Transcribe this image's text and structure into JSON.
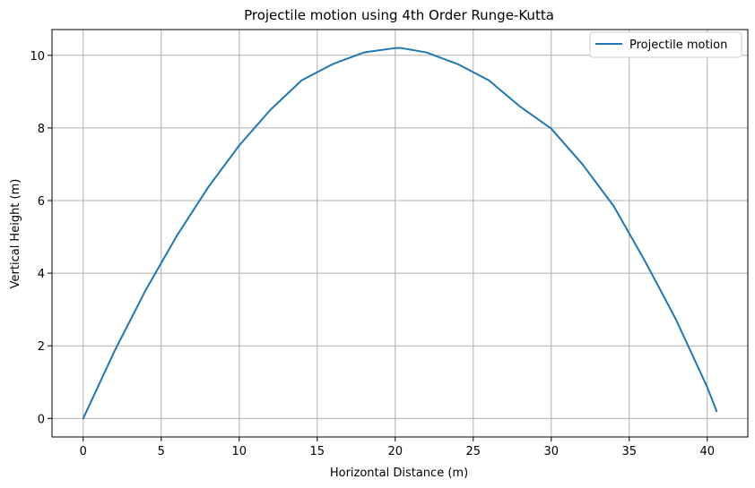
{
  "chart_data": {
    "type": "line",
    "title": "Projectile motion using 4th Order Runge-Kutta",
    "xlabel": "Horizontal Distance (m)",
    "ylabel": "Vertical Height (m)",
    "xlim": [
      -2.0,
      42.6
    ],
    "ylim": [
      -0.51,
      10.71
    ],
    "xticks": [
      0,
      5,
      10,
      15,
      20,
      25,
      30,
      35,
      40
    ],
    "yticks": [
      0,
      2,
      4,
      6,
      8,
      10
    ],
    "xtick_labels": [
      "0",
      "5",
      "10",
      "15",
      "20",
      "25",
      "30",
      "35",
      "40"
    ],
    "ytick_labels": [
      "0",
      "2",
      "4",
      "6",
      "8",
      "10"
    ],
    "grid": true,
    "legend": {
      "position": "top-right"
    },
    "series": [
      {
        "name": "Projectile motion",
        "color": "#1f77b4",
        "x": [
          0,
          2,
          4,
          6,
          8,
          10,
          12,
          14,
          16,
          18,
          20,
          20.4,
          22,
          24,
          26,
          28,
          30,
          32,
          34,
          36,
          38,
          40,
          40.6
        ],
        "y": [
          0,
          1.85,
          3.53,
          5.03,
          6.36,
          7.52,
          8.5,
          9.31,
          9.76,
          10.08,
          10.2,
          10.2,
          10.08,
          9.76,
          9.31,
          8.59,
          7.98,
          7.0,
          5.85,
          4.34,
          2.72,
          0.86,
          0.2
        ]
      }
    ]
  }
}
